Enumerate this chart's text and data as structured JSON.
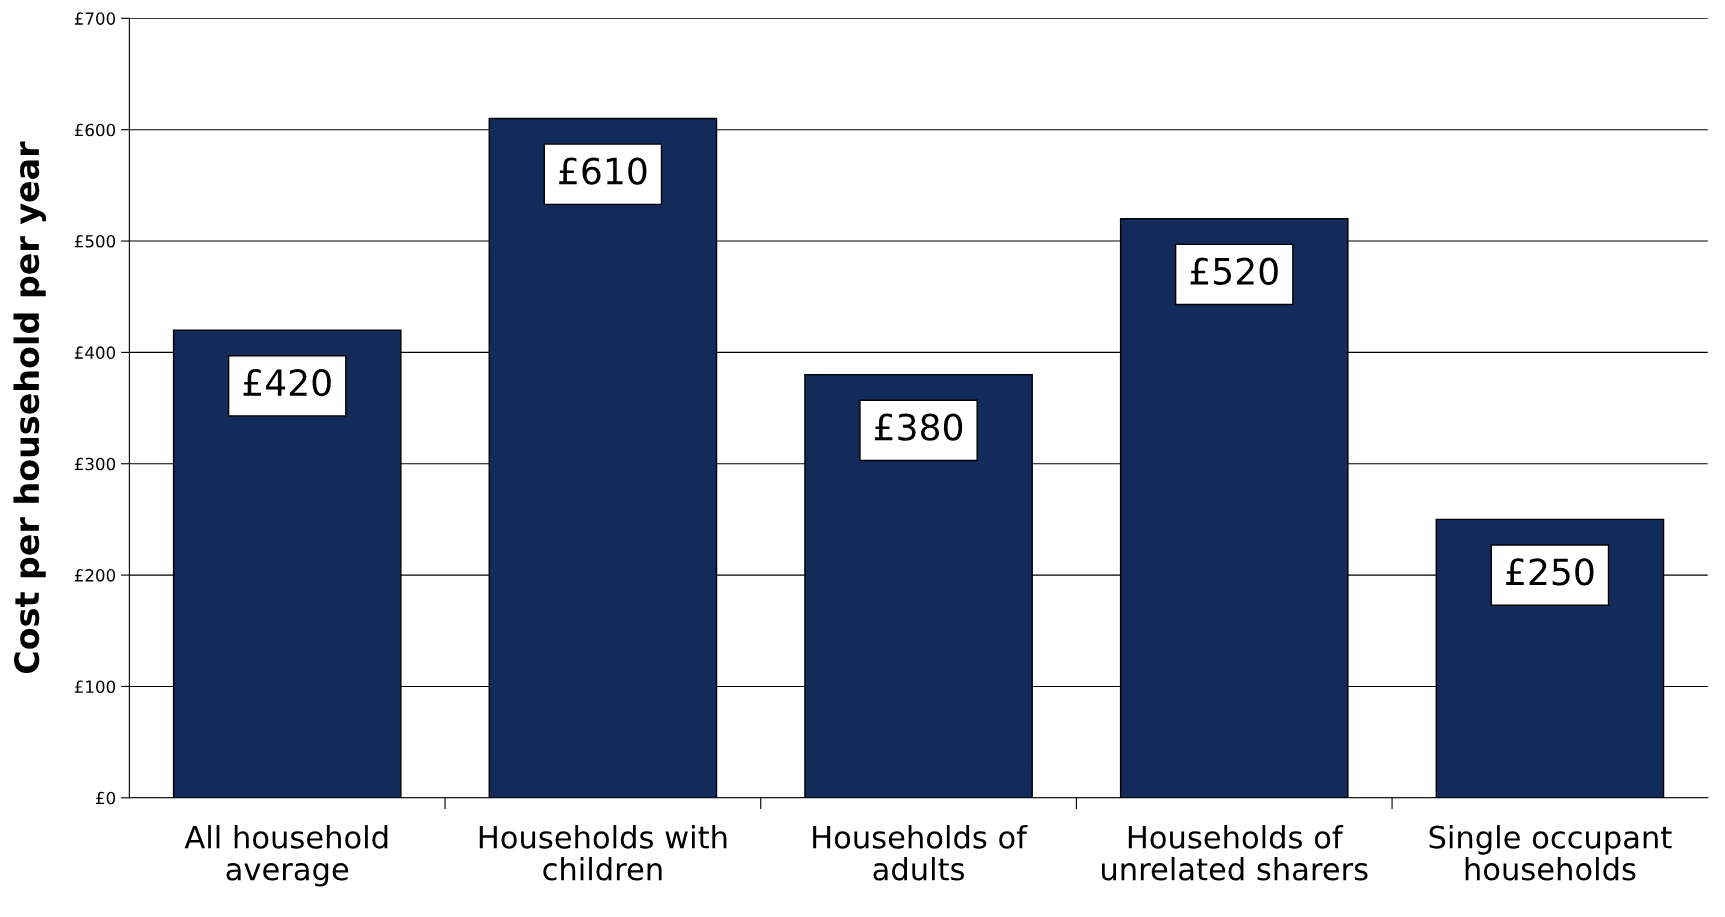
{
  "chart_data": {
    "type": "bar",
    "ylabel": "Cost per household per year",
    "categories": [
      "All household average",
      "Households with children",
      "Households of adults",
      "Households of unrelated sharers",
      "Single occupant households"
    ],
    "values": [
      420,
      610,
      380,
      520,
      250
    ],
    "color": "#132b5b",
    "value_labels": [
      "£420",
      "£610",
      "£380",
      "£520",
      "£250"
    ],
    "ylim": [
      0,
      700
    ],
    "yticks": [
      {
        "value": 0,
        "label": "£0"
      },
      {
        "value": 100,
        "label": "£100"
      },
      {
        "value": 200,
        "label": "£200"
      },
      {
        "value": 300,
        "label": "£300"
      },
      {
        "value": 400,
        "label": "£400"
      },
      {
        "value": 500,
        "label": "£500"
      },
      {
        "value": 600,
        "label": "£600"
      },
      {
        "value": 700,
        "label": "£700"
      }
    ],
    "grid": "y"
  }
}
